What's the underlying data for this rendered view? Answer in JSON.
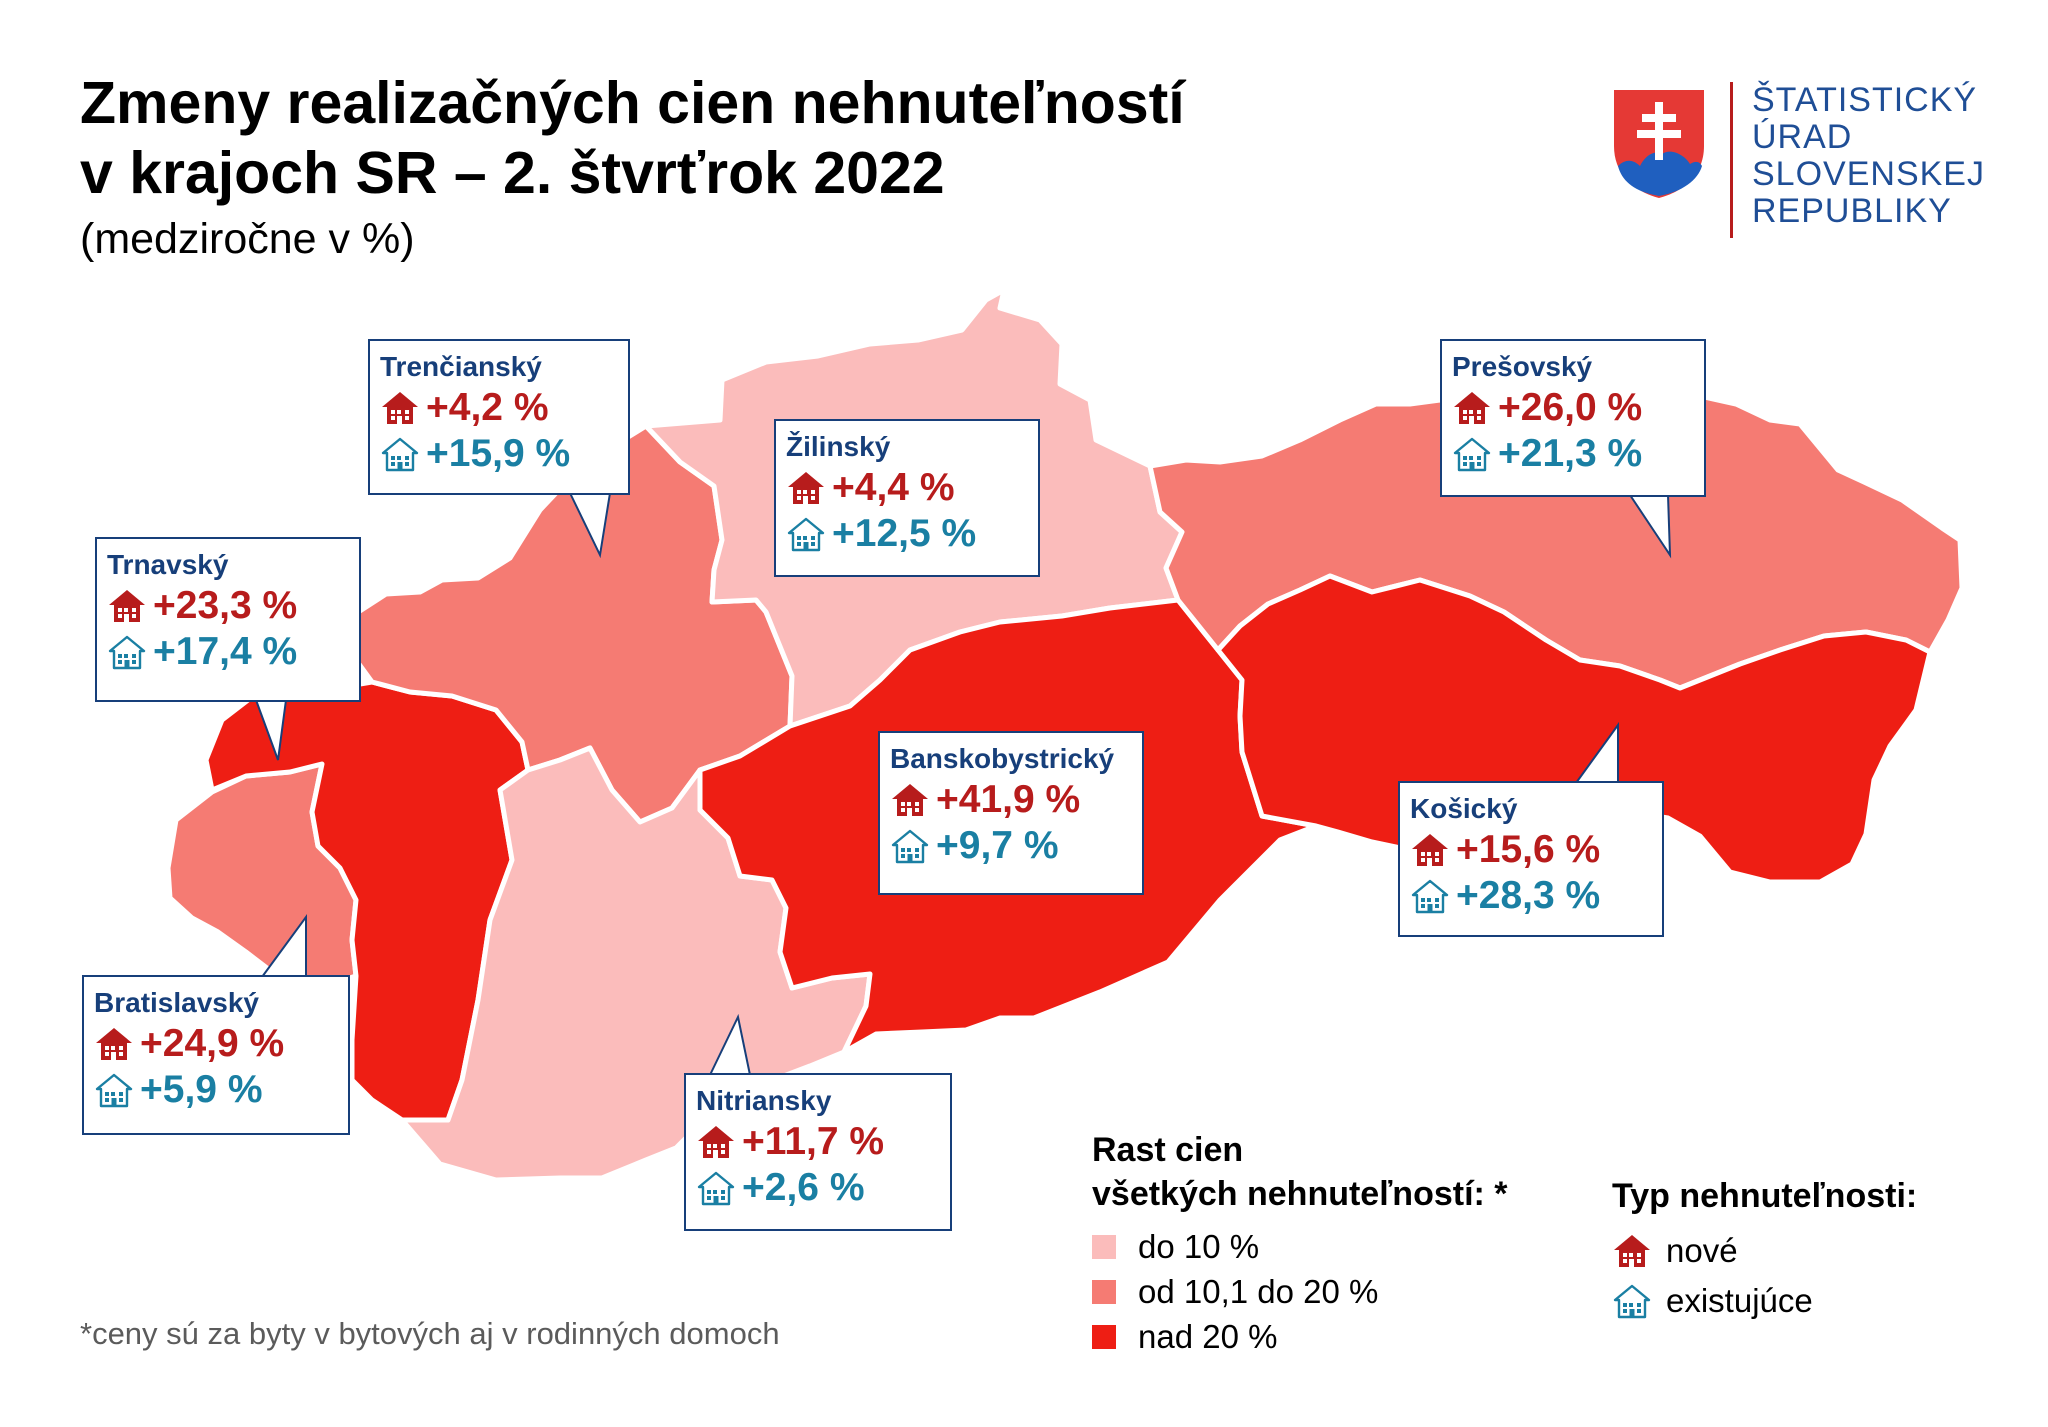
{
  "title": {
    "line1": "Zmeny realizačných cien nehnuteľností",
    "line2": "v krajoch SR – 2. štvrťrok 2022",
    "subtitle": "(medziročne v %)"
  },
  "logo": {
    "lines": [
      "ŠTATISTICKÝ",
      "ÚRAD",
      "SLOVENSKEJ",
      "REPUBLIKY"
    ],
    "shield_colors": {
      "red": "#e53935",
      "white": "#ffffff",
      "blue": "#1f5fbf"
    }
  },
  "colors": {
    "low": "#fbbcbb",
    "mid": "#f57b73",
    "high": "#ee1e14",
    "border": "#ffffff",
    "callout_border": "#173f7a",
    "region_name": "#173f7a",
    "new_value": "#b71c1c",
    "existing_value": "#1a7fa3"
  },
  "icons": {
    "new": "house-filled-icon",
    "existing": "house-outline-icon"
  },
  "regions": [
    {
      "id": "bratislavsky",
      "name": "Bratislavský",
      "new": "+24,9 %",
      "existing": "+5,9 %",
      "category": "mid"
    },
    {
      "id": "trnavsky",
      "name": "Trnavský",
      "new": "+23,3 %",
      "existing": "+17,4 %",
      "category": "high"
    },
    {
      "id": "trenciansky",
      "name": "Trenčianský",
      "new": "+4,2 %",
      "existing": "+15,9 %",
      "category": "mid"
    },
    {
      "id": "nitriansky",
      "name": "Nitriansky",
      "new": "+11,7 %",
      "existing": "+2,6 %",
      "category": "low"
    },
    {
      "id": "zilinsky",
      "name": "Žilinský",
      "new": "+4,4 %",
      "existing": "+12,5 %",
      "category": "low"
    },
    {
      "id": "banskobystricky",
      "name": "Banskobystrický",
      "new": "+41,9 %",
      "existing": "+9,7 %",
      "category": "high"
    },
    {
      "id": "presovsky",
      "name": "Prešovský",
      "new": "+26,0 %",
      "existing": "+21,3 %",
      "category": "mid"
    },
    {
      "id": "kosicky",
      "name": "Košický",
      "new": "+15,6 %",
      "existing": "+28,3 %",
      "category": "high"
    }
  ],
  "legend": {
    "title_line1": "Rast cien",
    "title_line2": "všetkých nehnuteľností: *",
    "items": [
      {
        "label": "do 10 %",
        "category": "low"
      },
      {
        "label": "od 10,1 do 20 %",
        "category": "mid"
      },
      {
        "label": "nad 20 %",
        "category": "high"
      }
    ]
  },
  "type_legend": {
    "title": "Typ nehnuteľnosti:",
    "new_label": "nové",
    "existing_label": "existujúce"
  },
  "footnote": "*ceny sú za byty v bytových aj v rodinných domoch"
}
